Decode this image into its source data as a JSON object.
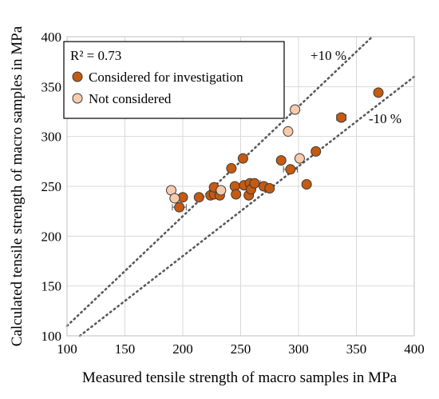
{
  "chart_data": {
    "type": "scatter",
    "xlabel": "Measured tensile strength of macro samples in MPa",
    "ylabel": "Calculated tensile strength of macro samples in MPa",
    "xlim": [
      100,
      400
    ],
    "ylim": [
      100,
      400
    ],
    "x_ticks": [
      100,
      150,
      200,
      250,
      300,
      350,
      400
    ],
    "y_ticks": [
      100,
      150,
      200,
      250,
      300,
      350,
      400
    ],
    "grid": true,
    "legend_position": "top-left",
    "annotations": {
      "r2_label": "R² = 0.73",
      "upper_band": "+10 %",
      "lower_band": "-10 %"
    },
    "reference_lines": [
      {
        "name": "+10 %",
        "slope": 1.1,
        "style": "dotted"
      },
      {
        "name": "-10 %",
        "slope": 0.9,
        "style": "dotted"
      }
    ],
    "colors": {
      "considered": "#c55a11",
      "not_considered": "#f8cbad",
      "marker_edge": "#3a3a3a",
      "grid": "#d9d9d9",
      "ref_line": "#595959"
    },
    "series": [
      {
        "name": "Considered for investigation",
        "color": "#c55a11",
        "points": [
          {
            "x": 197,
            "y": 229,
            "xerr": 6
          },
          {
            "x": 200,
            "y": 239
          },
          {
            "x": 214,
            "y": 239
          },
          {
            "x": 224,
            "y": 241
          },
          {
            "x": 227,
            "y": 242
          },
          {
            "x": 227,
            "y": 249
          },
          {
            "x": 232,
            "y": 241
          },
          {
            "x": 242,
            "y": 268
          },
          {
            "x": 245,
            "y": 250
          },
          {
            "x": 246,
            "y": 242
          },
          {
            "x": 252,
            "y": 278
          },
          {
            "x": 253,
            "y": 251
          },
          {
            "x": 257,
            "y": 241
          },
          {
            "x": 258,
            "y": 253
          },
          {
            "x": 259,
            "y": 247
          },
          {
            "x": 262,
            "y": 253,
            "xerr": 5
          },
          {
            "x": 270,
            "y": 250
          },
          {
            "x": 275,
            "y": 248
          },
          {
            "x": 285,
            "y": 276
          },
          {
            "x": 293,
            "y": 267,
            "xerr": 6
          },
          {
            "x": 307,
            "y": 252
          },
          {
            "x": 315,
            "y": 285
          },
          {
            "x": 337,
            "y": 319,
            "xerr": 4
          },
          {
            "x": 369,
            "y": 344
          }
        ]
      },
      {
        "name": "Not considered",
        "color": "#f8cbad",
        "points": [
          {
            "x": 190,
            "y": 246
          },
          {
            "x": 193,
            "y": 238
          },
          {
            "x": 233,
            "y": 246
          },
          {
            "x": 291,
            "y": 305
          },
          {
            "x": 297,
            "y": 327
          },
          {
            "x": 301,
            "y": 278
          }
        ]
      }
    ]
  }
}
